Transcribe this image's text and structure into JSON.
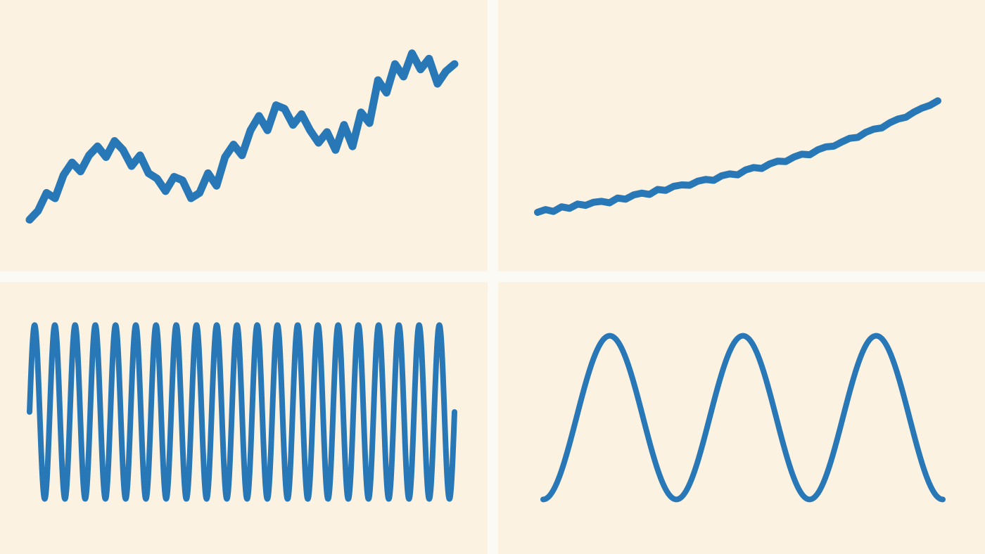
{
  "colors": {
    "background": "#fbfaf4",
    "panel": "#fcf2e1",
    "line": "#2878b8"
  },
  "chart_data": [
    {
      "type": "line",
      "position": "top-left",
      "title": "",
      "xlabel": "",
      "ylabel": "",
      "grid": false,
      "legend": "none",
      "xlim": [
        0,
        20
      ],
      "ylim": [
        -1,
        10
      ],
      "description_kind": "random-walk-trend-with-oscillation",
      "series": [
        {
          "x": [
            0.0,
            0.4,
            0.8,
            1.2,
            1.6,
            2.0,
            2.4,
            2.8,
            3.2,
            3.6,
            4.0,
            4.4,
            4.8,
            5.2,
            5.6,
            6.0,
            6.4,
            6.8,
            7.2,
            7.6,
            8.0,
            8.4,
            8.8,
            9.2,
            9.6,
            10.0,
            10.4,
            10.8,
            11.2,
            11.6,
            12.0,
            12.4,
            12.8,
            13.2,
            13.6,
            14.0,
            14.4,
            14.8,
            15.2,
            15.6,
            16.0,
            16.4,
            16.8,
            17.2,
            17.6,
            18.0,
            18.4,
            18.8,
            19.2,
            19.6,
            20.0
          ],
          "y": [
            0.0,
            0.5,
            1.5,
            1.2,
            2.5,
            3.2,
            2.7,
            3.6,
            4.1,
            3.5,
            4.4,
            3.9,
            3.0,
            3.6,
            2.6,
            2.3,
            1.6,
            2.4,
            2.2,
            1.2,
            1.5,
            2.6,
            1.9,
            3.5,
            4.2,
            3.6,
            5.0,
            5.8,
            5.0,
            6.4,
            6.2,
            5.3,
            5.9,
            5.0,
            4.3,
            4.9,
            3.9,
            5.3,
            4.1,
            6.0,
            5.4,
            7.8,
            7.1,
            8.7,
            8.0,
            9.3,
            8.4,
            9.0,
            7.6,
            8.3,
            8.7
          ]
        }
      ]
    },
    {
      "type": "line",
      "position": "top-right",
      "title": "",
      "xlabel": "",
      "ylabel": "",
      "grid": false,
      "legend": "none",
      "xlim": [
        0,
        10
      ],
      "ylim": [
        0,
        10
      ],
      "series": [
        {
          "x": [
            0.0,
            0.2,
            0.4,
            0.6,
            0.8,
            1.0,
            1.2,
            1.4,
            1.6,
            1.8,
            2.0,
            2.2,
            2.4,
            2.6,
            2.8,
            3.0,
            3.2,
            3.4,
            3.6,
            3.8,
            4.0,
            4.2,
            4.4,
            4.6,
            4.8,
            5.0,
            5.2,
            5.4,
            5.6,
            5.8,
            6.0,
            6.2,
            6.4,
            6.6,
            6.8,
            7.0,
            7.2,
            7.4,
            7.6,
            7.8,
            8.0,
            8.2,
            8.4,
            8.6,
            8.8,
            9.0,
            9.2,
            9.4,
            9.6,
            9.8,
            10.0
          ],
          "y": [
            1.0,
            1.15,
            1.05,
            1.3,
            1.22,
            1.45,
            1.38,
            1.55,
            1.6,
            1.52,
            1.78,
            1.72,
            1.95,
            2.05,
            1.98,
            2.25,
            2.2,
            2.42,
            2.5,
            2.48,
            2.7,
            2.8,
            2.75,
            3.0,
            3.1,
            3.05,
            3.32,
            3.45,
            3.4,
            3.65,
            3.8,
            3.78,
            4.02,
            4.18,
            4.15,
            4.42,
            4.58,
            4.62,
            4.85,
            5.05,
            5.1,
            5.38,
            5.55,
            5.62,
            5.9,
            6.1,
            6.2,
            6.48,
            6.7,
            6.85,
            7.1
          ]
        }
      ]
    },
    {
      "type": "line",
      "position": "bottom-left",
      "title": "",
      "xlabel": "",
      "ylabel": "",
      "grid": false,
      "legend": "none",
      "xlim": [
        0,
        21
      ],
      "ylim": [
        -1.1,
        1.1
      ],
      "function": "high-frequency-sine",
      "series": [
        {
          "cycles": 21,
          "amplitude": 1.0,
          "start_value": 0.0
        }
      ]
    },
    {
      "type": "line",
      "position": "bottom-right",
      "title": "",
      "xlabel": "",
      "ylabel": "",
      "grid": false,
      "legend": "none",
      "xlim": [
        0,
        3
      ],
      "ylim": [
        -1.1,
        1.1
      ],
      "function": "low-frequency-cosine",
      "series": [
        {
          "cycles": 3,
          "amplitude": 1.0,
          "start_value": -1.0
        }
      ]
    }
  ]
}
